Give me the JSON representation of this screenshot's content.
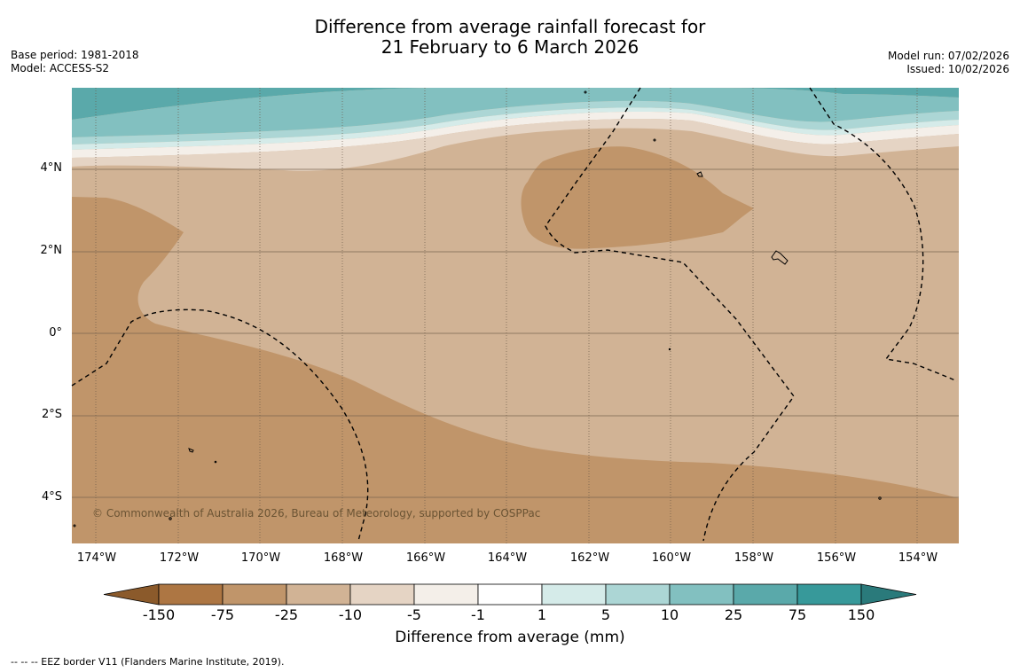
{
  "title": {
    "line1": "Difference from average rainfall forecast for",
    "line2": "21 February to 6 March 2026"
  },
  "meta": {
    "base_period": "Base period: 1981-2018",
    "model": "Model: ACCESS-S2",
    "model_run": "Model run: 07/02/2026",
    "issued": "Issued: 10/02/2026"
  },
  "map": {
    "lat_labels": [
      "4°N",
      "2°N",
      "0°",
      "2°S",
      "4°S"
    ],
    "lon_labels": [
      "174°W",
      "172°W",
      "170°W",
      "168°W",
      "166°W",
      "164°W",
      "162°W",
      "160°W",
      "158°W",
      "156°W",
      "154°W"
    ],
    "credit": "© Commonwealth of Australia 2026, Bureau of Meteorology, supported by COSPPac",
    "colors": {
      "ocean_dry_strong": "#c0956a",
      "ocean_dry_moderate": "#d1b395",
      "ocean_dry_weak": "#e5d4c4",
      "ocean_neutral_dry": "#f4efe9",
      "ocean_neutral_wet": "#d5ebe9",
      "ocean_wet_weak": "#acd6d5",
      "ocean_wet_moderate": "#82c0c0",
      "ocean_wet_strong": "#5aa9aa"
    }
  },
  "colorbar": {
    "ticks": [
      "-150",
      "-75",
      "-25",
      "-10",
      "-5",
      "-1",
      "1",
      "5",
      "10",
      "25",
      "75",
      "150"
    ],
    "colors": [
      "#8b5a2b",
      "#ad7643",
      "#c0956a",
      "#d1b395",
      "#e5d4c4",
      "#f4efe9",
      "#ffffff",
      "#d5ebe9",
      "#acd6d5",
      "#82c0c0",
      "#5aa9aa",
      "#37999a",
      "#2a7a7b"
    ],
    "label": "Difference from average (mm)"
  },
  "footnote": "--  --  -- EEZ border V11 (Flanders Marine Institute, 2019)."
}
